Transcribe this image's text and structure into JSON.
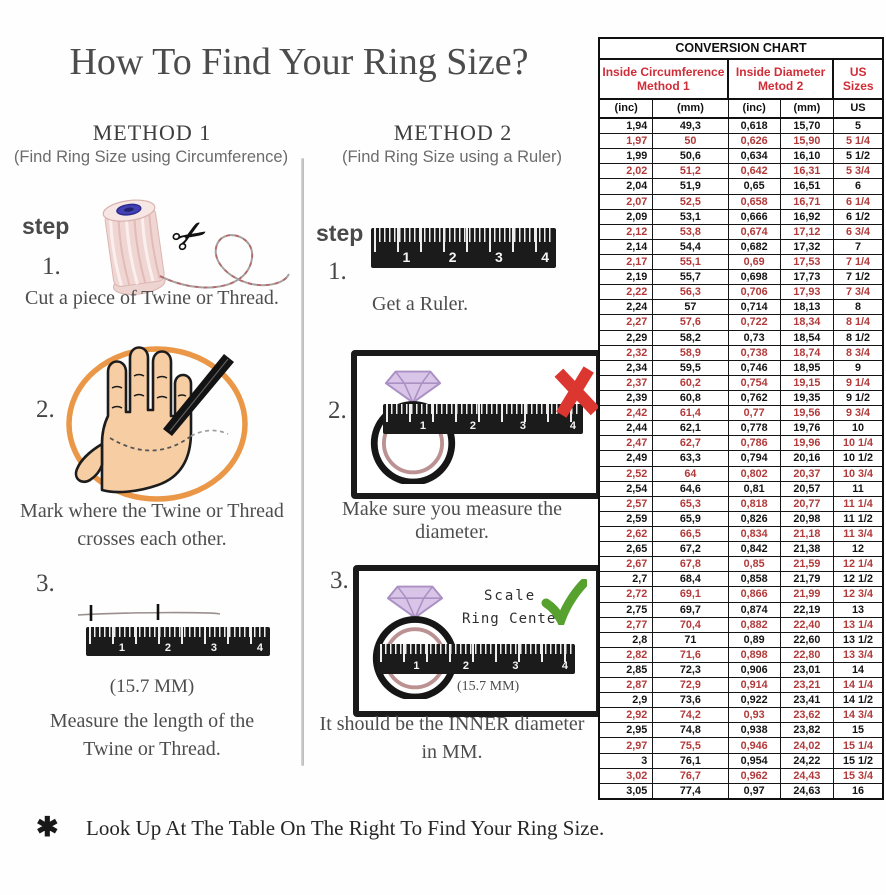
{
  "title": "How To Find Your Ring Size?",
  "method1": {
    "heading": "METHOD 1",
    "subheading": "(Find Ring Size using Circumference)",
    "step_label": "step",
    "steps": [
      {
        "num": "1.",
        "caption": "Cut a piece of Twine or Thread."
      },
      {
        "num": "2.",
        "caption_line1": "Mark where the Twine or Thread",
        "caption_line2": "crosses each other."
      },
      {
        "num": "3.",
        "measurement": "(15.7 MM)",
        "caption_line1": "Measure the length of the",
        "caption_line2": "Twine or Thread."
      }
    ]
  },
  "method2": {
    "heading": "METHOD 2",
    "subheading": "(Find Ring Size using a Ruler)",
    "step_label": "step",
    "steps": [
      {
        "num": "1.",
        "caption": "Get a Ruler."
      },
      {
        "num": "2.",
        "caption": "Make sure you measure the diameter."
      },
      {
        "num": "3.",
        "scale_line1": "Scale",
        "scale_line2": "Ring Center",
        "measurement": "(15.7 MM)",
        "caption_line1": "It should be the INNER diameter",
        "caption_line2": "in MM."
      }
    ]
  },
  "ruler_numbers": [
    "1",
    "2",
    "3",
    "4"
  ],
  "footnote": {
    "marker": "✱",
    "text": "Look Up At The Table On The Right To Find Your Ring Size."
  },
  "conversion_chart": {
    "title": "CONVERSION CHART",
    "group1_line1": "Inside Circumference",
    "group1_line2": "Method 1",
    "group2_line1": "Inside Diameter",
    "group2_line2": "Metod 2",
    "group3": "US Sizes",
    "unit_headers": [
      "(inc)",
      "(mm)",
      "(inc)",
      "(mm)",
      "US"
    ],
    "rows": [
      [
        "1,94",
        "49,3",
        "0,618",
        "15,70",
        "5"
      ],
      [
        "1,97",
        "50",
        "0,626",
        "15,90",
        "5 1/4"
      ],
      [
        "1,99",
        "50,6",
        "0,634",
        "16,10",
        "5 1/2"
      ],
      [
        "2,02",
        "51,2",
        "0,642",
        "16,31",
        "5 3/4"
      ],
      [
        "2,04",
        "51,9",
        "0,65",
        "16,51",
        "6"
      ],
      [
        "2,07",
        "52,5",
        "0,658",
        "16,71",
        "6 1/4"
      ],
      [
        "2,09",
        "53,1",
        "0,666",
        "16,92",
        "6 1/2"
      ],
      [
        "2,12",
        "53,8",
        "0,674",
        "17,12",
        "6 3/4"
      ],
      [
        "2,14",
        "54,4",
        "0,682",
        "17,32",
        "7"
      ],
      [
        "2,17",
        "55,1",
        "0,69",
        "17,53",
        "7 1/4"
      ],
      [
        "2,19",
        "55,7",
        "0,698",
        "17,73",
        "7 1/2"
      ],
      [
        "2,22",
        "56,3",
        "0,706",
        "17,93",
        "7 3/4"
      ],
      [
        "2,24",
        "57",
        "0,714",
        "18,13",
        "8"
      ],
      [
        "2,27",
        "57,6",
        "0,722",
        "18,34",
        "8 1/4"
      ],
      [
        "2,29",
        "58,2",
        "0,73",
        "18,54",
        "8 1/2"
      ],
      [
        "2,32",
        "58,9",
        "0,738",
        "18,74",
        "8 3/4"
      ],
      [
        "2,34",
        "59,5",
        "0,746",
        "18,95",
        "9"
      ],
      [
        "2,37",
        "60,2",
        "0,754",
        "19,15",
        "9 1/4"
      ],
      [
        "2,39",
        "60,8",
        "0,762",
        "19,35",
        "9 1/2"
      ],
      [
        "2,42",
        "61,4",
        "0,77",
        "19,56",
        "9 3/4"
      ],
      [
        "2,44",
        "62,1",
        "0,778",
        "19,76",
        "10"
      ],
      [
        "2,47",
        "62,7",
        "0,786",
        "19,96",
        "10 1/4"
      ],
      [
        "2,49",
        "63,3",
        "0,794",
        "20,16",
        "10 1/2"
      ],
      [
        "2,52",
        "64",
        "0,802",
        "20,37",
        "10 3/4"
      ],
      [
        "2,54",
        "64,6",
        "0,81",
        "20,57",
        "11"
      ],
      [
        "2,57",
        "65,3",
        "0,818",
        "20,77",
        "11 1/4"
      ],
      [
        "2,59",
        "65,9",
        "0,826",
        "20,98",
        "11 1/2"
      ],
      [
        "2,62",
        "66,5",
        "0,834",
        "21,18",
        "11 3/4"
      ],
      [
        "2,65",
        "67,2",
        "0,842",
        "21,38",
        "12"
      ],
      [
        "2,67",
        "67,8",
        "0,85",
        "21,59",
        "12 1/4"
      ],
      [
        "2,7",
        "68,4",
        "0,858",
        "21,79",
        "12 1/2"
      ],
      [
        "2,72",
        "69,1",
        "0,866",
        "21,99",
        "12 3/4"
      ],
      [
        "2,75",
        "69,7",
        "0,874",
        "22,19",
        "13"
      ],
      [
        "2,77",
        "70,4",
        "0,882",
        "22,40",
        "13 1/4"
      ],
      [
        "2,8",
        "71",
        "0,89",
        "22,60",
        "13 1/2"
      ],
      [
        "2,82",
        "71,6",
        "0,898",
        "22,80",
        "13 3/4"
      ],
      [
        "2,85",
        "72,3",
        "0,906",
        "23,01",
        "14"
      ],
      [
        "2,87",
        "72,9",
        "0,914",
        "23,21",
        "14 1/4"
      ],
      [
        "2,9",
        "73,6",
        "0,922",
        "23,41",
        "14 1/2"
      ],
      [
        "2,92",
        "74,2",
        "0,93",
        "23,62",
        "14 3/4"
      ],
      [
        "2,95",
        "74,8",
        "0,938",
        "23,82",
        "15"
      ],
      [
        "2,97",
        "75,5",
        "0,946",
        "24,02",
        "15 1/4"
      ],
      [
        "3",
        "76,1",
        "0,954",
        "24,22",
        "15 1/2"
      ],
      [
        "3,02",
        "76,7",
        "0,962",
        "24,43",
        "15 3/4"
      ],
      [
        "3,05",
        "77,4",
        "0,97",
        "24,63",
        "16"
      ]
    ]
  },
  "colors": {
    "header_red": "#cf2d38",
    "row_red": "#b23a3a",
    "check_green": "#57a12f",
    "cross_red": "#dc3630",
    "circle_orange": "#e9913e"
  }
}
